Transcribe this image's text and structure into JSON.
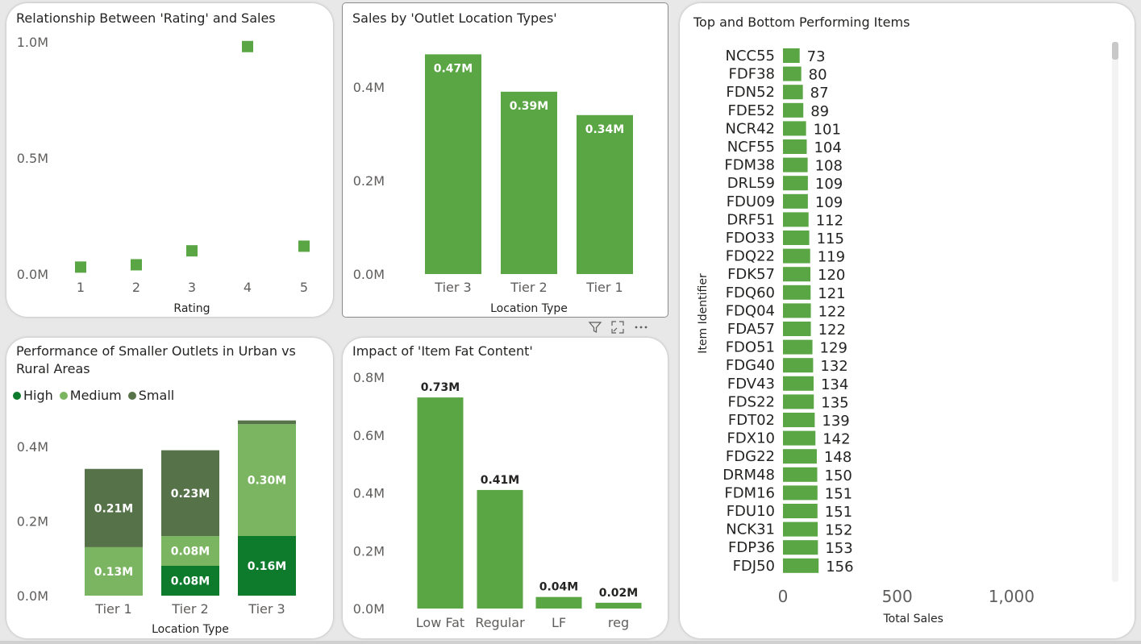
{
  "visual_header": {
    "filter_icon": "filter-icon",
    "focus_icon": "focus-mode-icon",
    "more_icon": "more-options-icon"
  },
  "chart_data": [
    {
      "id": "rating",
      "type": "scatter",
      "title": "Relationship Between 'Rating' and Sales",
      "xlabel": "Rating",
      "ylabel": "",
      "x": [
        1,
        2,
        3,
        4,
        5
      ],
      "y": [
        0.03,
        0.04,
        0.1,
        0.98,
        0.12
      ],
      "xticks": [
        "1",
        "2",
        "3",
        "4",
        "5"
      ],
      "yticks": [
        "0.0M",
        "0.5M",
        "1.0M"
      ],
      "yticks_values": [
        0,
        0.5,
        1.0
      ],
      "ylim": [
        0,
        1.0
      ],
      "color": "#5aa544"
    },
    {
      "id": "outlet_location",
      "type": "bar",
      "title": "Sales by 'Outlet Location Types'",
      "xlabel": "Location Type",
      "ylabel": "",
      "categories": [
        "Tier 3",
        "Tier 2",
        "Tier 1"
      ],
      "values": [
        0.47,
        0.39,
        0.34
      ],
      "labels": [
        "0.47M",
        "0.39M",
        "0.34M"
      ],
      "yticks": [
        "0.0M",
        "0.2M",
        "0.4M"
      ],
      "yticks_values": [
        0,
        0.2,
        0.4
      ],
      "ylim": [
        0,
        0.5
      ],
      "color": "#5aa544"
    },
    {
      "id": "outlet_size",
      "type": "bar",
      "stacked": true,
      "title": "Performance of Smaller Outlets in Urban vs Rural Areas",
      "xlabel": "Location Type",
      "ylabel": "",
      "categories": [
        "Tier 1",
        "Tier 2",
        "Tier 3"
      ],
      "series": [
        {
          "name": "High",
          "color": "#0d7a2c",
          "values": [
            0,
            0.08,
            0.16
          ],
          "labels": [
            "",
            "0.08M",
            "0.16M"
          ]
        },
        {
          "name": "Medium",
          "color": "#7cb561",
          "values": [
            0.13,
            0.08,
            0.3
          ],
          "labels": [
            "0.13M",
            "0.08M",
            "0.30M"
          ]
        },
        {
          "name": "Small",
          "color": "#567249",
          "values": [
            0.21,
            0.23,
            0.01
          ],
          "labels": [
            "0.21M",
            "0.23M",
            ""
          ]
        }
      ],
      "legend_position": "top-left",
      "yticks": [
        "0.0M",
        "0.2M",
        "0.4M"
      ],
      "yticks_values": [
        0,
        0.2,
        0.4
      ],
      "ylim": [
        0,
        0.48
      ]
    },
    {
      "id": "fat_content",
      "type": "bar",
      "title": "Impact of 'Item Fat Content'",
      "xlabel": "",
      "ylabel": "",
      "categories": [
        "Low Fat",
        "Regular",
        "LF",
        "reg"
      ],
      "values": [
        0.73,
        0.41,
        0.04,
        0.02
      ],
      "labels": [
        "0.73M",
        "0.41M",
        "0.04M",
        "0.02M"
      ],
      "yticks": [
        "0.0M",
        "0.2M",
        "0.4M",
        "0.6M",
        "0.8M"
      ],
      "yticks_values": [
        0,
        0.2,
        0.4,
        0.6,
        0.8
      ],
      "ylim": [
        0,
        0.8
      ],
      "color": "#5aa544"
    },
    {
      "id": "items",
      "type": "bar",
      "orientation": "horizontal",
      "title": "Top and Bottom Performing Items",
      "xlabel": "Total Sales",
      "ylabel": "Item Identifier",
      "categories": [
        "NCC55",
        "FDF38",
        "FDN52",
        "FDE52",
        "NCR42",
        "NCF55",
        "FDM38",
        "DRL59",
        "FDU09",
        "DRF51",
        "FDO33",
        "FDQ22",
        "FDK57",
        "FDQ60",
        "FDQ04",
        "FDA57",
        "FDO51",
        "FDG40",
        "FDV43",
        "FDS22",
        "FDT02",
        "FDX10",
        "FDG22",
        "DRM48",
        "FDM16",
        "FDU10",
        "NCK31",
        "FDP36",
        "FDJ50"
      ],
      "values": [
        73,
        80,
        87,
        89,
        101,
        104,
        108,
        109,
        109,
        112,
        115,
        119,
        120,
        121,
        122,
        122,
        129,
        132,
        134,
        135,
        139,
        142,
        148,
        150,
        151,
        151,
        152,
        153,
        156
      ],
      "labels": [
        "73",
        "80",
        "87",
        "89",
        "101",
        "104",
        "108",
        "109",
        "109",
        "112",
        "115",
        "119",
        "120",
        "121",
        "122",
        "122",
        "129",
        "132",
        "134",
        "135",
        "139",
        "142",
        "148",
        "150",
        "151",
        "151",
        "152",
        "153",
        "156"
      ],
      "xticks": [
        "0",
        "500",
        "1,000"
      ],
      "xticks_values": [
        0,
        500,
        1000
      ],
      "xlim": [
        0,
        1200
      ],
      "color": "#5aa544"
    }
  ]
}
